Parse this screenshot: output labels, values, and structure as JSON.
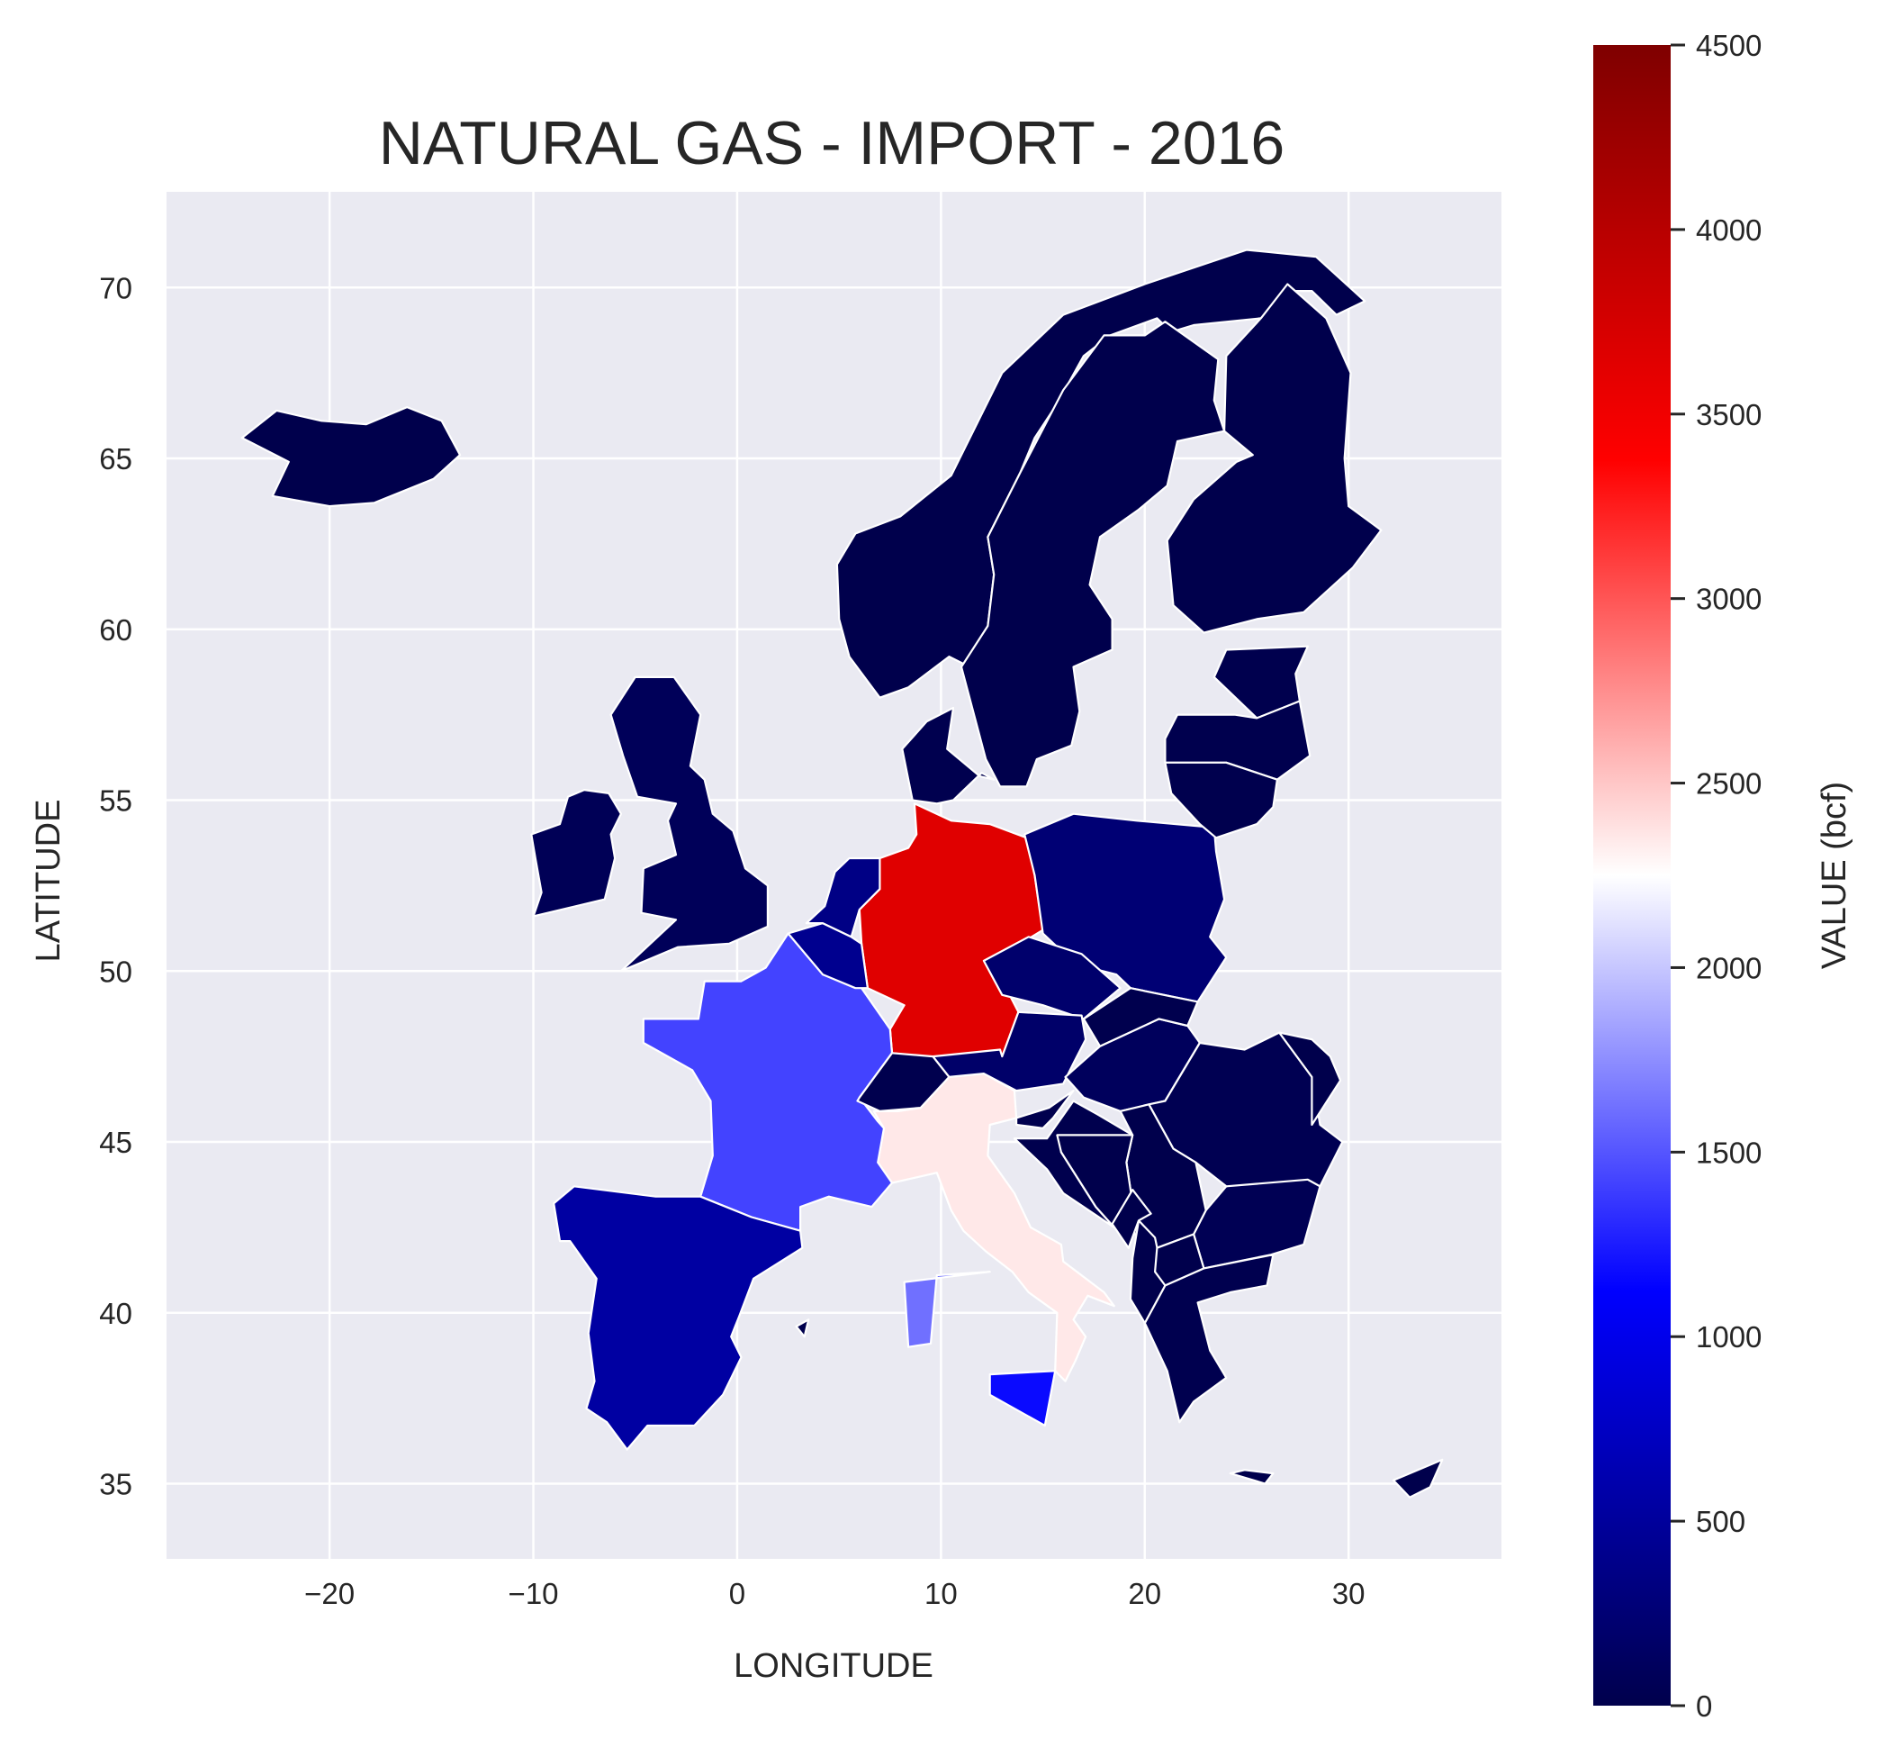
{
  "chart_data": {
    "type": "choropleth",
    "title": "NATURAL GAS - IMPORT - 2016",
    "xlabel": "LONGITUDE",
    "ylabel": "LATITUDE",
    "xlim": [
      -28,
      37.5
    ],
    "ylim": [
      32.8,
      72.8
    ],
    "xticks": [
      -20,
      -10,
      0,
      10,
      20,
      30
    ],
    "xtick_labels": [
      "−20",
      "−10",
      "0",
      "10",
      "20",
      "30"
    ],
    "yticks": [
      35,
      40,
      45,
      50,
      55,
      60,
      65,
      70
    ],
    "ytick_labels": [
      "35",
      "40",
      "45",
      "50",
      "55",
      "60",
      "65",
      "70"
    ],
    "grid": true,
    "colorbar": {
      "label": "VALUE (bcf)",
      "min": 0,
      "max": 4500,
      "ticks": [
        0,
        500,
        1000,
        1500,
        2000,
        2500,
        3000,
        3500,
        4000,
        4500
      ],
      "tick_labels": [
        "0",
        "500",
        "1000",
        "1500",
        "2000",
        "2500",
        "3000",
        "3500",
        "4000",
        "4500"
      ],
      "colormap": "seismic",
      "colormap_stops": [
        "#00004c",
        "#0000ff",
        "#ffffff",
        "#ff0000",
        "#7f0000"
      ]
    },
    "regions": [
      {
        "value": 3650
      },
      {
        "value": 2350
      },
      {
        "value": 1620
      },
      {
        "value": 1170
      },
      {
        "value": 1420
      },
      {
        "value": 540
      },
      {
        "value": 420
      },
      {
        "value": 360
      },
      {
        "value": 250
      },
      {
        "value": 200
      },
      {
        "value": 180
      },
      {
        "value": 100
      },
      {
        "value": 80
      },
      {
        "value": 60
      },
      {
        "value": 50
      },
      {
        "value": 40
      },
      {
        "value": 20
      },
      {
        "value": 20
      },
      {
        "value": 10
      },
      {
        "value": 10
      },
      {
        "value": 10
      },
      {
        "value": 10
      },
      {
        "value": 10
      },
      {
        "value": 10
      },
      {
        "value": 10
      },
      {
        "value": 5
      },
      {
        "value": 0
      },
      {
        "value": 0
      },
      {
        "value": 0
      }
    ]
  }
}
